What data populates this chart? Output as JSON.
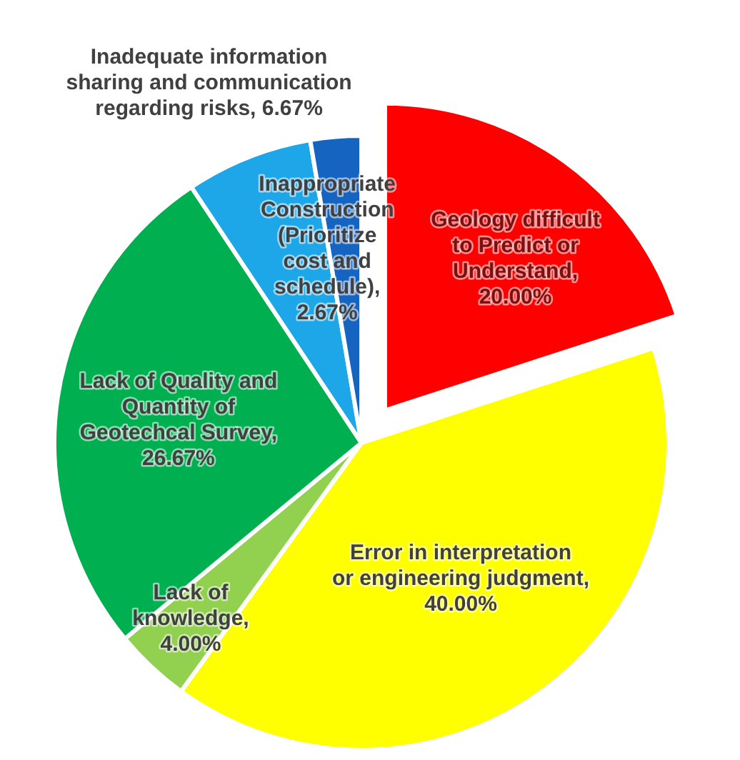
{
  "chart_data": {
    "type": "pie",
    "categories": [
      "Geology difficult to Predict or Understand, 20.00%",
      "Error in interpretation or engineering judgment, 40.00%",
      "Lack of knowledge, 4.00%",
      "Lack of Quality and Quantity of Geotechcal Survey, 26.67%",
      "Inadequate information sharing and communication regarding risks, 6.67%",
      "Inappropriate Construction (Prioritize cost and schedule), 2.67%"
    ],
    "values": [
      20.0,
      40.0,
      4.0,
      26.67,
      6.67,
      2.67
    ],
    "colors": [
      "#ff0000",
      "#ffff00",
      "#92d050",
      "#00b050",
      "#1ea7e8",
      "#1565c0"
    ]
  }
}
